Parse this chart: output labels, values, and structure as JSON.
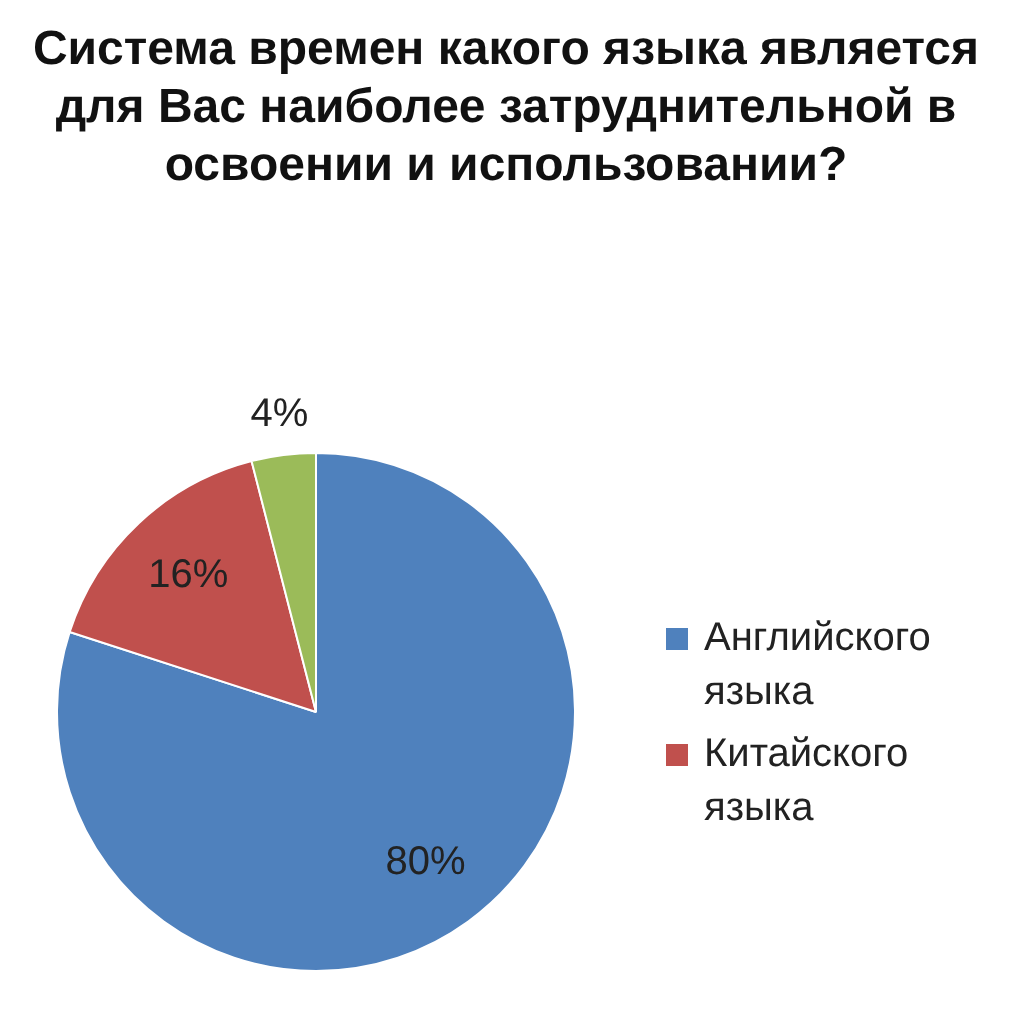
{
  "chart_data": {
    "type": "pie",
    "title": "Система времен какого языка является для Вас наиболее затруднительной в освоении и использовании?",
    "categories": [
      "Английского языка",
      "Китайского языка",
      null
    ],
    "values": [
      80,
      16,
      4
    ],
    "colors": [
      "#4f81bd",
      "#c0504d",
      "#9bbb59"
    ],
    "value_labels": [
      "80%",
      "16%",
      "4%"
    ],
    "legend": "right"
  }
}
